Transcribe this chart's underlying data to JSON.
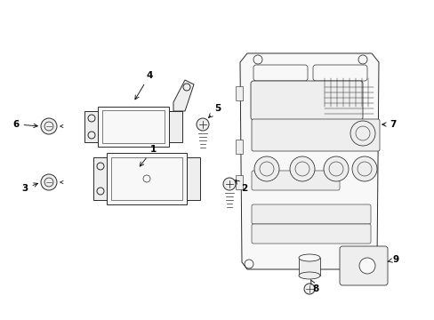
{
  "bg_color": "#ffffff",
  "line_color": "#2a2a2a",
  "text_color": "#000000",
  "figsize": [
    4.89,
    3.6
  ],
  "dpi": 100,
  "lw": 0.7
}
